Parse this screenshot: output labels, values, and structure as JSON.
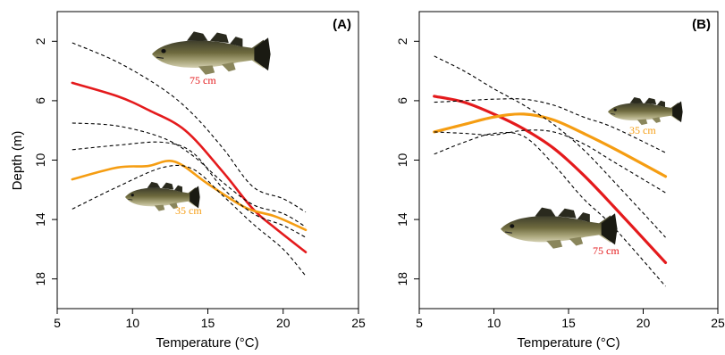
{
  "chart_data": [
    {
      "panel": "(A)",
      "type": "line",
      "xlabel": "Temperature (°C)",
      "ylabel": "Depth (m)",
      "xlim": [
        5,
        25
      ],
      "ylim": [
        20,
        0
      ],
      "y_inverted": true,
      "xticks": [
        "5",
        "10",
        "15",
        "20",
        "25"
      ],
      "yticks": [
        "2",
        "6",
        "10",
        "14",
        "18"
      ],
      "grid": false,
      "series": [
        {
          "name": "75 cm",
          "color": "#e41a1c",
          "style": "solid",
          "x": [
            6,
            9,
            11,
            13.5,
            16,
            18,
            19.5,
            21.5
          ],
          "y": [
            4.8,
            5.7,
            6.6,
            8.0,
            10.8,
            13.3,
            14.6,
            16.2
          ]
        },
        {
          "name": "35 cm",
          "color": "#f59d12",
          "style": "solid",
          "x": [
            6,
            9,
            11,
            12.8,
            15,
            17.5,
            19.5,
            21.5
          ],
          "y": [
            11.3,
            10.5,
            10.4,
            10.1,
            11.6,
            13.2,
            13.8,
            14.7
          ]
        },
        {
          "name": "",
          "color": "#000000",
          "style": "dashed",
          "x": [
            6,
            9,
            12,
            14,
            16,
            18,
            20,
            21.5
          ],
          "y": [
            2.1,
            3.4,
            5.2,
            6.9,
            9.2,
            11.8,
            12.6,
            13.5
          ]
        },
        {
          "name": "",
          "color": "#000000",
          "style": "dashed",
          "x": [
            6,
            9,
            12,
            14,
            16,
            18,
            20,
            21.5
          ],
          "y": [
            7.5,
            7.7,
            8.5,
            9.7,
            11.5,
            13.0,
            13.6,
            14.5
          ]
        },
        {
          "name": "",
          "color": "#000000",
          "style": "dashed",
          "x": [
            6,
            9,
            12,
            14,
            16,
            18,
            20,
            21.5
          ],
          "y": [
            9.3,
            9.0,
            8.8,
            9.5,
            11.9,
            13.6,
            14.4,
            15.2
          ]
        },
        {
          "name": "",
          "color": "#000000",
          "style": "dashed",
          "x": [
            6,
            9,
            12,
            14,
            16,
            18,
            20,
            21.5
          ],
          "y": [
            13.3,
            11.8,
            10.5,
            10.6,
            12.4,
            14.3,
            16.0,
            17.8
          ]
        }
      ],
      "annotations": [
        {
          "text": "75 cm",
          "color": "#e41a1c"
        },
        {
          "text": "35 cm",
          "color": "#f59d12"
        }
      ]
    },
    {
      "panel": "(B)",
      "type": "line",
      "xlabel": "Temperature (°C)",
      "ylabel": "",
      "xlim": [
        5,
        25
      ],
      "ylim": [
        20,
        0
      ],
      "y_inverted": true,
      "xticks": [
        "5",
        "10",
        "15",
        "20",
        "25"
      ],
      "yticks": [
        "2",
        "6",
        "10",
        "14",
        "18"
      ],
      "grid": false,
      "series": [
        {
          "name": "75 cm",
          "color": "#e41a1c",
          "style": "solid",
          "x": [
            6,
            8,
            10,
            12,
            14,
            16,
            18,
            21.5
          ],
          "y": [
            5.7,
            6.1,
            6.9,
            7.9,
            9.2,
            11.0,
            13.1,
            16.9
          ]
        },
        {
          "name": "35 cm",
          "color": "#f59d12",
          "style": "solid",
          "x": [
            6,
            8,
            10,
            12,
            14,
            16,
            18,
            21.5
          ],
          "y": [
            8.1,
            7.6,
            7.1,
            6.9,
            7.3,
            8.2,
            9.2,
            11.1
          ]
        },
        {
          "name": "",
          "color": "#000000",
          "style": "dashed",
          "x": [
            6,
            8,
            10,
            12,
            14,
            16,
            18,
            21.5
          ],
          "y": [
            3.0,
            4.0,
            5.2,
            6.3,
            7.6,
            9.3,
            11.4,
            15.2
          ]
        },
        {
          "name": "",
          "color": "#000000",
          "style": "dashed",
          "x": [
            6,
            8,
            10,
            12,
            14,
            16,
            18,
            21.5
          ],
          "y": [
            6.1,
            6.0,
            5.9,
            5.9,
            6.3,
            7.1,
            7.8,
            9.5
          ]
        },
        {
          "name": "",
          "color": "#000000",
          "style": "dashed",
          "x": [
            6,
            8,
            10,
            12,
            14,
            16,
            18,
            21.5
          ],
          "y": [
            8.1,
            8.2,
            8.3,
            8.0,
            8.1,
            8.9,
            10.1,
            12.2
          ]
        },
        {
          "name": "",
          "color": "#000000",
          "style": "dashed",
          "x": [
            6,
            8,
            10,
            12,
            14,
            16,
            18,
            21.5
          ],
          "y": [
            9.6,
            8.8,
            8.2,
            8.4,
            10.3,
            12.6,
            14.5,
            18.5
          ]
        }
      ],
      "annotations": [
        {
          "text": "35 cm",
          "color": "#f59d12"
        },
        {
          "text": "75 cm",
          "color": "#e41a1c"
        }
      ]
    }
  ]
}
